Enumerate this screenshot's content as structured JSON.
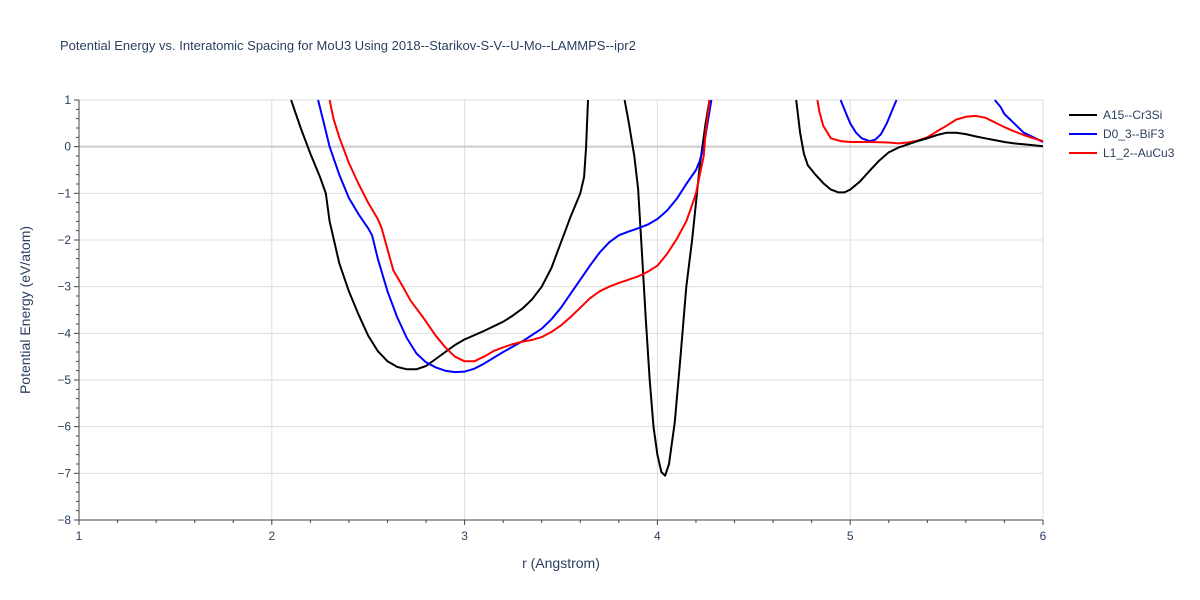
{
  "chart_data": {
    "type": "line",
    "title": "Potential Energy vs. Interatomic Spacing for MoU3 Using 2018--Starikov-S-V--U-Mo--LAMMPS--ipr2",
    "xlabel": "r (Angstrom)",
    "ylabel": "Potential Energy (eV/atom)",
    "xlim": [
      1,
      6
    ],
    "ylim": [
      -8,
      1
    ],
    "xticks": [
      "1",
      "2",
      "3",
      "4",
      "5",
      "6"
    ],
    "yticks": [
      "1",
      "0",
      "−1",
      "−2",
      "−3",
      "−4",
      "−5",
      "−6",
      "−7",
      "−8"
    ],
    "grid": true,
    "legend_position": "top-right",
    "series": [
      {
        "name": "A15--Cr3Si",
        "color": "#000000",
        "segments": [
          [
            [
              2.1,
              1.0
            ],
            [
              2.15,
              0.4
            ],
            [
              2.2,
              -0.15
            ],
            [
              2.25,
              -0.65
            ],
            [
              2.28,
              -1.0
            ],
            [
              2.3,
              -1.6
            ],
            [
              2.35,
              -2.5
            ],
            [
              2.4,
              -3.1
            ],
            [
              2.45,
              -3.6
            ],
            [
              2.5,
              -4.05
            ],
            [
              2.55,
              -4.38
            ],
            [
              2.6,
              -4.6
            ],
            [
              2.65,
              -4.72
            ],
            [
              2.7,
              -4.77
            ],
            [
              2.75,
              -4.77
            ],
            [
              2.8,
              -4.7
            ],
            [
              2.85,
              -4.55
            ],
            [
              2.9,
              -4.4
            ],
            [
              2.95,
              -4.25
            ],
            [
              3.0,
              -4.13
            ],
            [
              3.1,
              -3.95
            ],
            [
              3.2,
              -3.75
            ],
            [
              3.25,
              -3.62
            ],
            [
              3.3,
              -3.47
            ],
            [
              3.35,
              -3.27
            ],
            [
              3.4,
              -3.0
            ],
            [
              3.45,
              -2.6
            ],
            [
              3.5,
              -2.05
            ],
            [
              3.55,
              -1.5
            ],
            [
              3.58,
              -1.2
            ],
            [
              3.6,
              -1.0
            ],
            [
              3.62,
              -0.65
            ],
            [
              3.63,
              0.0
            ],
            [
              3.64,
              1.0
            ]
          ],
          [
            [
              3.83,
              1.0
            ],
            [
              3.85,
              0.55
            ],
            [
              3.88,
              -0.2
            ],
            [
              3.9,
              -0.9
            ],
            [
              3.92,
              -2.3
            ],
            [
              3.94,
              -3.7
            ],
            [
              3.96,
              -5.0
            ],
            [
              3.98,
              -6.0
            ],
            [
              4.0,
              -6.6
            ],
            [
              4.02,
              -6.97
            ],
            [
              4.04,
              -7.05
            ],
            [
              4.06,
              -6.8
            ],
            [
              4.09,
              -5.9
            ],
            [
              4.12,
              -4.5
            ],
            [
              4.15,
              -3.0
            ],
            [
              4.18,
              -2.0
            ],
            [
              4.2,
              -1.2
            ],
            [
              4.22,
              -0.4
            ],
            [
              4.25,
              0.5
            ],
            [
              4.27,
              1.0
            ]
          ]
        ]
      },
      {
        "name": "D0_3--BiF3",
        "color": "#0000ff",
        "segments": [
          [
            [
              2.24,
              1.0
            ],
            [
              2.27,
              0.5
            ],
            [
              2.3,
              0.0
            ],
            [
              2.35,
              -0.6
            ],
            [
              2.4,
              -1.1
            ],
            [
              2.45,
              -1.45
            ],
            [
              2.5,
              -1.75
            ],
            [
              2.52,
              -1.9
            ],
            [
              2.55,
              -2.4
            ],
            [
              2.6,
              -3.1
            ],
            [
              2.65,
              -3.65
            ],
            [
              2.7,
              -4.1
            ],
            [
              2.75,
              -4.43
            ],
            [
              2.8,
              -4.62
            ],
            [
              2.85,
              -4.73
            ],
            [
              2.9,
              -4.8
            ],
            [
              2.95,
              -4.83
            ],
            [
              3.0,
              -4.82
            ],
            [
              3.05,
              -4.76
            ],
            [
              3.1,
              -4.65
            ],
            [
              3.2,
              -4.4
            ],
            [
              3.3,
              -4.17
            ],
            [
              3.4,
              -3.9
            ],
            [
              3.45,
              -3.7
            ],
            [
              3.5,
              -3.45
            ],
            [
              3.55,
              -3.15
            ],
            [
              3.6,
              -2.85
            ],
            [
              3.65,
              -2.55
            ],
            [
              3.7,
              -2.27
            ],
            [
              3.75,
              -2.05
            ],
            [
              3.8,
              -1.9
            ],
            [
              3.85,
              -1.82
            ],
            [
              3.9,
              -1.75
            ],
            [
              3.95,
              -1.67
            ],
            [
              4.0,
              -1.55
            ],
            [
              4.05,
              -1.37
            ],
            [
              4.1,
              -1.12
            ],
            [
              4.15,
              -0.8
            ],
            [
              4.2,
              -0.5
            ],
            [
              4.22,
              -0.3
            ],
            [
              4.24,
              0.0
            ],
            [
              4.26,
              0.5
            ],
            [
              4.28,
              1.0
            ]
          ],
          [
            [
              4.95,
              1.0
            ],
            [
              4.98,
              0.7
            ],
            [
              5.0,
              0.5
            ],
            [
              5.03,
              0.3
            ],
            [
              5.06,
              0.18
            ],
            [
              5.1,
              0.12
            ],
            [
              5.13,
              0.15
            ],
            [
              5.16,
              0.27
            ],
            [
              5.19,
              0.5
            ],
            [
              5.22,
              0.8
            ],
            [
              5.24,
              1.0
            ]
          ],
          [
            [
              5.75,
              1.0
            ],
            [
              5.78,
              0.85
            ],
            [
              5.8,
              0.7
            ],
            [
              5.85,
              0.5
            ],
            [
              5.9,
              0.3
            ],
            [
              5.95,
              0.2
            ],
            [
              6.0,
              0.1
            ]
          ]
        ]
      },
      {
        "name": "L1_2--AuCu3",
        "color": "#ff0000",
        "segments": [
          [
            [
              2.3,
              1.0
            ],
            [
              2.32,
              0.6
            ],
            [
              2.35,
              0.2
            ],
            [
              2.4,
              -0.35
            ],
            [
              2.45,
              -0.8
            ],
            [
              2.5,
              -1.2
            ],
            [
              2.55,
              -1.55
            ],
            [
              2.57,
              -1.75
            ],
            [
              2.6,
              -2.2
            ],
            [
              2.63,
              -2.65
            ],
            [
              2.68,
              -3.0
            ],
            [
              2.72,
              -3.3
            ],
            [
              2.78,
              -3.63
            ],
            [
              2.85,
              -4.05
            ],
            [
              2.9,
              -4.3
            ],
            [
              2.95,
              -4.5
            ],
            [
              3.0,
              -4.6
            ],
            [
              3.05,
              -4.6
            ],
            [
              3.1,
              -4.5
            ],
            [
              3.15,
              -4.38
            ],
            [
              3.2,
              -4.3
            ],
            [
              3.25,
              -4.23
            ],
            [
              3.3,
              -4.18
            ],
            [
              3.35,
              -4.14
            ],
            [
              3.4,
              -4.08
            ],
            [
              3.45,
              -3.97
            ],
            [
              3.5,
              -3.83
            ],
            [
              3.55,
              -3.65
            ],
            [
              3.6,
              -3.45
            ],
            [
              3.65,
              -3.25
            ],
            [
              3.7,
              -3.1
            ],
            [
              3.75,
              -3.0
            ],
            [
              3.8,
              -2.92
            ],
            [
              3.85,
              -2.85
            ],
            [
              3.9,
              -2.78
            ],
            [
              3.95,
              -2.68
            ],
            [
              4.0,
              -2.55
            ],
            [
              4.05,
              -2.3
            ],
            [
              4.1,
              -1.98
            ],
            [
              4.15,
              -1.6
            ],
            [
              4.18,
              -1.25
            ],
            [
              4.2,
              -1.0
            ],
            [
              4.22,
              -0.6
            ],
            [
              4.24,
              -0.2
            ],
            [
              4.25,
              0.3
            ],
            [
              4.27,
              1.0
            ]
          ],
          [
            [
              4.83,
              1.0
            ],
            [
              4.84,
              0.75
            ],
            [
              4.86,
              0.45
            ],
            [
              4.9,
              0.18
            ],
            [
              4.95,
              0.12
            ],
            [
              5.0,
              0.1
            ],
            [
              5.1,
              0.1
            ],
            [
              5.2,
              0.09
            ],
            [
              5.25,
              0.07
            ],
            [
              5.3,
              0.09
            ],
            [
              5.35,
              0.13
            ],
            [
              5.4,
              0.2
            ],
            [
              5.45,
              0.33
            ],
            [
              5.5,
              0.45
            ],
            [
              5.55,
              0.58
            ],
            [
              5.6,
              0.64
            ],
            [
              5.65,
              0.66
            ],
            [
              5.7,
              0.62
            ],
            [
              5.75,
              0.52
            ],
            [
              5.8,
              0.42
            ],
            [
              5.85,
              0.33
            ],
            [
              5.9,
              0.25
            ],
            [
              5.95,
              0.18
            ],
            [
              6.0,
              0.12
            ]
          ]
        ]
      },
      {
        "name": "",
        "color": "#000000",
        "legend": false,
        "segments": [
          [
            [
              4.72,
              1.0
            ],
            [
              4.74,
              0.3
            ],
            [
              4.76,
              -0.15
            ],
            [
              4.78,
              -0.4
            ],
            [
              4.82,
              -0.6
            ],
            [
              4.86,
              -0.78
            ],
            [
              4.9,
              -0.92
            ],
            [
              4.94,
              -0.98
            ],
            [
              4.97,
              -0.98
            ],
            [
              5.0,
              -0.92
            ],
            [
              5.05,
              -0.75
            ],
            [
              5.1,
              -0.52
            ],
            [
              5.15,
              -0.3
            ],
            [
              5.2,
              -0.12
            ],
            [
              5.25,
              -0.02
            ],
            [
              5.3,
              0.05
            ],
            [
              5.35,
              0.12
            ],
            [
              5.4,
              0.18
            ],
            [
              5.45,
              0.25
            ],
            [
              5.5,
              0.3
            ],
            [
              5.55,
              0.3
            ],
            [
              5.6,
              0.27
            ],
            [
              5.65,
              0.22
            ],
            [
              5.7,
              0.18
            ],
            [
              5.75,
              0.14
            ],
            [
              5.8,
              0.1
            ],
            [
              5.85,
              0.07
            ],
            [
              5.9,
              0.05
            ],
            [
              5.95,
              0.03
            ],
            [
              6.0,
              0.01
            ]
          ]
        ]
      }
    ]
  }
}
